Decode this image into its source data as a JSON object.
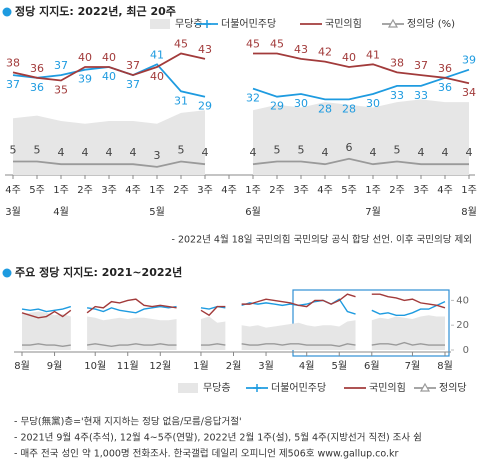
{
  "chart_data": [
    {
      "type": "line",
      "title": "정당 지지도: 2022년, 최근 20주",
      "categories": [
        "4주",
        "5주",
        "1주",
        "2주",
        "3주",
        "4주",
        "1주",
        "2주",
        "3주",
        "4주",
        "1주",
        "2주",
        "3주",
        "4주",
        "5주",
        "1주",
        "2주",
        "3주",
        "4주",
        "1주"
      ],
      "category_groups": [
        "3월",
        null,
        "4월",
        null,
        null,
        null,
        "5월",
        null,
        null,
        null,
        "6월",
        null,
        null,
        null,
        null,
        "7월",
        null,
        null,
        null,
        "8월"
      ],
      "ylim": [
        0,
        50
      ],
      "series": [
        {
          "name": "무당층",
          "color": "#e6e6e6",
          "style": "area",
          "values": [
            21,
            22,
            20,
            19,
            20,
            20,
            19,
            23,
            24,
            null,
            24,
            26,
            25,
            27,
            26,
            25,
            27,
            28,
            27,
            27
          ]
        },
        {
          "name": "더불어민주당",
          "color": "#1e9be0",
          "values": [
            37,
            36,
            37,
            39,
            40,
            37,
            41,
            31,
            29,
            null,
            32,
            29,
            30,
            28,
            28,
            30,
            33,
            33,
            36,
            39
          ]
        },
        {
          "name": "국민의힘",
          "color": "#a23b3b",
          "values": [
            38,
            36,
            35,
            40,
            40,
            37,
            40,
            45,
            43,
            null,
            45,
            45,
            43,
            42,
            40,
            41,
            38,
            37,
            36,
            34
          ]
        },
        {
          "name": "정의당 (%)",
          "color": "#9a9a9a",
          "values": [
            5,
            5,
            4,
            4,
            4,
            4,
            3,
            5,
            4,
            null,
            4,
            5,
            5,
            4,
            6,
            4,
            5,
            4,
            4,
            4
          ]
        }
      ],
      "note": "- 2022년 4월 18일 국민의힘 국민의당 공식 합당 선언. 이후 국민의당 제외"
    },
    {
      "type": "line",
      "title": "주요 정당 지지도: 2021~2022년",
      "categories": [
        "8월",
        null,
        null,
        null,
        "9월",
        null,
        null,
        null,
        null,
        "10월",
        null,
        null,
        null,
        "11월",
        null,
        null,
        null,
        "12월",
        null,
        null,
        null,
        null,
        "1월",
        null,
        null,
        null,
        "2월",
        null,
        null,
        null,
        "3월",
        null,
        null,
        null,
        null,
        "4월",
        null,
        null,
        null,
        "5월",
        null,
        null,
        null,
        "6월",
        null,
        null,
        null,
        null,
        "7월",
        null,
        null,
        null,
        "8월"
      ],
      "ylim": [
        0,
        50
      ],
      "yticks": [
        40,
        20,
        0
      ],
      "series": [
        {
          "name": "무당층",
          "color": "#e6e6e6",
          "style": "area",
          "values": [
            29,
            30,
            31,
            30,
            28,
            29,
            27,
            null,
            27,
            26,
            24,
            25,
            26,
            25,
            26,
            26,
            25,
            24,
            24,
            25,
            null,
            null,
            25,
            27,
            22,
            23,
            null,
            20,
            19,
            20,
            18,
            19,
            20,
            21,
            22,
            20,
            19,
            20,
            20,
            19,
            23,
            24,
            null,
            24,
            26,
            25,
            27,
            26,
            25,
            27,
            28,
            27,
            27
          ]
        },
        {
          "name": "더불어민주당",
          "color": "#1e9be0",
          "values": [
            33,
            32,
            33,
            31,
            32,
            33,
            35,
            null,
            34,
            33,
            31,
            34,
            32,
            31,
            30,
            33,
            34,
            35,
            34,
            35,
            null,
            null,
            34,
            33,
            35,
            34,
            null,
            36,
            38,
            37,
            38,
            37,
            36,
            37,
            36,
            37,
            39,
            40,
            37,
            41,
            31,
            29,
            null,
            32,
            29,
            30,
            28,
            28,
            30,
            33,
            33,
            36,
            39
          ]
        },
        {
          "name": "국민의힘",
          "color": "#a23b3b",
          "values": [
            30,
            28,
            26,
            27,
            31,
            27,
            32,
            null,
            30,
            35,
            34,
            39,
            38,
            40,
            41,
            36,
            35,
            36,
            35,
            34,
            null,
            null,
            32,
            28,
            35,
            35,
            null,
            37,
            37,
            39,
            41,
            40,
            39,
            38,
            36,
            35,
            40,
            40,
            37,
            40,
            45,
            43,
            null,
            45,
            45,
            43,
            42,
            40,
            41,
            38,
            37,
            36,
            34
          ]
        },
        {
          "name": "정의당",
          "color": "#9a9a9a",
          "values": [
            4,
            4,
            5,
            4,
            4,
            3,
            4,
            null,
            4,
            5,
            4,
            3,
            4,
            4,
            5,
            4,
            4,
            5,
            4,
            4,
            null,
            null,
            4,
            4,
            5,
            4,
            null,
            5,
            4,
            4,
            5,
            5,
            4,
            5,
            5,
            4,
            4,
            4,
            4,
            3,
            5,
            4,
            null,
            4,
            5,
            5,
            4,
            6,
            4,
            5,
            4,
            4,
            4
          ]
        }
      ],
      "notes": [
        "- 무당(無黨)층='현재 지지하는 정당 없음/모름/응답거절'",
        "- 2021년 9월 4주(추석), 12월 4~5주(연말), 2022년 2월 1주(설), 5월 4주(지방선거 직전) 조사 쉼",
        "- 매주 전국 성인 약 1,000명 전화조사. 한국갤럽 데일리 오피니언 제506호 www.gallup.co.kr"
      ]
    }
  ]
}
